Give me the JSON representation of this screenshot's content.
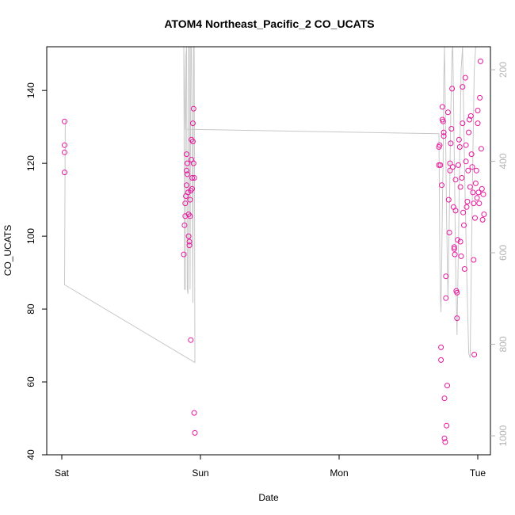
{
  "chart_data": {
    "type": "scatter",
    "title": "ATOM4 Northeast_Pacific_2 CO_UCATS",
    "xlabel": "Date",
    "ylabel": "CO_UCATS",
    "x_ticks": [
      "Sat",
      "Sun",
      "Mon",
      "Tue"
    ],
    "ylim": [
      40,
      152
    ],
    "y_ticks": [
      40,
      60,
      80,
      100,
      120,
      140
    ],
    "y2_ticks": [
      200,
      400,
      600,
      800,
      1000
    ],
    "y2_reversed": true,
    "colors": {
      "points": "#e6199e",
      "altitude_line": "#c8c8c8",
      "axis": "#000000",
      "right_axis": "#b3b3b3"
    },
    "series": [
      {
        "marker": "circle",
        "points": [
          [
            0.02,
            131.5
          ],
          [
            0.02,
            125
          ],
          [
            0.02,
            123
          ],
          [
            0.02,
            117.5
          ],
          [
            0.88,
            95
          ],
          [
            0.885,
            103
          ],
          [
            0.89,
            105.5
          ],
          [
            0.89,
            109
          ],
          [
            0.895,
            111
          ],
          [
            0.9,
            114
          ],
          [
            0.9,
            118
          ],
          [
            0.9,
            122.5
          ],
          [
            0.905,
            117
          ],
          [
            0.905,
            120
          ],
          [
            0.91,
            112
          ],
          [
            0.915,
            106
          ],
          [
            0.915,
            100
          ],
          [
            0.92,
            98.5
          ],
          [
            0.92,
            97.5
          ],
          [
            0.925,
            105.5
          ],
          [
            0.925,
            110
          ],
          [
            0.93,
            112.5
          ],
          [
            0.93,
            71.5
          ],
          [
            0.935,
            126.5
          ],
          [
            0.935,
            121
          ],
          [
            0.94,
            116
          ],
          [
            0.94,
            113
          ],
          [
            0.945,
            126
          ],
          [
            0.945,
            131
          ],
          [
            0.95,
            135
          ],
          [
            0.95,
            120
          ],
          [
            0.955,
            116
          ],
          [
            0.955,
            51.5
          ],
          [
            0.96,
            46
          ],
          [
            2.72,
            119.5
          ],
          [
            2.72,
            124.5
          ],
          [
            2.725,
            125
          ],
          [
            2.73,
            119.5
          ],
          [
            2.735,
            69.5
          ],
          [
            2.735,
            66
          ],
          [
            2.74,
            114
          ],
          [
            2.745,
            132
          ],
          [
            2.745,
            135.5
          ],
          [
            2.75,
            131.5
          ],
          [
            2.755,
            128.5
          ],
          [
            2.755,
            127.5
          ],
          [
            2.76,
            55.5
          ],
          [
            2.76,
            44.5
          ],
          [
            2.765,
            43.5
          ],
          [
            2.77,
            89
          ],
          [
            2.77,
            83
          ],
          [
            2.775,
            48
          ],
          [
            2.78,
            59
          ],
          [
            2.785,
            134
          ],
          [
            2.79,
            110
          ],
          [
            2.795,
            101
          ],
          [
            2.8,
            118
          ],
          [
            2.8,
            120
          ],
          [
            2.805,
            125.5
          ],
          [
            2.81,
            129.5
          ],
          [
            2.815,
            140.5
          ],
          [
            2.82,
            119
          ],
          [
            2.825,
            108
          ],
          [
            2.83,
            97
          ],
          [
            2.83,
            96.5
          ],
          [
            2.835,
            95
          ],
          [
            2.84,
            107
          ],
          [
            2.84,
            115.5
          ],
          [
            2.845,
            85
          ],
          [
            2.85,
            84.5
          ],
          [
            2.85,
            77.5
          ],
          [
            2.855,
            99
          ],
          [
            2.86,
            119.5
          ],
          [
            2.865,
            126.5
          ],
          [
            2.87,
            124.5
          ],
          [
            2.875,
            113.5
          ],
          [
            2.875,
            98.5
          ],
          [
            2.88,
            94.5
          ],
          [
            2.885,
            116
          ],
          [
            2.89,
            141
          ],
          [
            2.89,
            131
          ],
          [
            2.895,
            106.5
          ],
          [
            2.9,
            103
          ],
          [
            2.905,
            91
          ],
          [
            2.91,
            143.5
          ],
          [
            2.915,
            125
          ],
          [
            2.915,
            120.5
          ],
          [
            2.92,
            108
          ],
          [
            2.925,
            109.5
          ],
          [
            2.93,
            118
          ],
          [
            2.935,
            128.5
          ],
          [
            2.94,
            132
          ],
          [
            2.945,
            113.5
          ],
          [
            2.95,
            133
          ],
          [
            2.955,
            122.5
          ],
          [
            2.96,
            119
          ],
          [
            2.965,
            112
          ],
          [
            2.97,
            109
          ],
          [
            2.97,
            93.5
          ],
          [
            2.975,
            67.5
          ],
          [
            2.98,
            105
          ],
          [
            2.985,
            114.5
          ],
          [
            2.99,
            118
          ],
          [
            2.995,
            110.5
          ],
          [
            3.0,
            134.5
          ],
          [
            3.0,
            131
          ],
          [
            3.005,
            112
          ],
          [
            3.01,
            109
          ],
          [
            3.015,
            138
          ],
          [
            3.02,
            148
          ],
          [
            3.025,
            124
          ],
          [
            3.03,
            113
          ],
          [
            3.035,
            104.5
          ],
          [
            3.04,
            111.5
          ],
          [
            3.045,
            106
          ]
        ]
      },
      {
        "name": "",
        "axis": "right",
        "line": true,
        "note_units": "pressure (reversed right axis)",
        "points": [
          [
            0.025,
            310
          ],
          [
            0.02,
            670
          ],
          [
            0.96,
            840
          ],
          [
            0.955,
            110
          ],
          [
            0.95,
            100
          ],
          [
            0.945,
            710
          ],
          [
            0.94,
            340
          ],
          [
            0.935,
            130
          ],
          [
            0.93,
            100
          ],
          [
            0.925,
            680
          ],
          [
            0.92,
            140
          ],
          [
            0.915,
            100
          ],
          [
            0.91,
            690
          ],
          [
            0.905,
            680
          ],
          [
            0.9,
            100
          ],
          [
            0.895,
            170
          ],
          [
            0.89,
            680
          ],
          [
            0.885,
            680
          ],
          [
            0.88,
            100
          ],
          [
            0.89,
            330
          ],
          [
            2.72,
            340
          ],
          [
            2.725,
            560
          ],
          [
            2.73,
            700
          ],
          [
            2.735,
            730
          ],
          [
            2.74,
            620
          ],
          [
            2.745,
            490
          ],
          [
            2.75,
            400
          ],
          [
            2.755,
            220
          ],
          [
            2.76,
            100
          ],
          [
            2.765,
            260
          ],
          [
            2.775,
            520
          ],
          [
            2.785,
            700
          ],
          [
            2.795,
            520
          ],
          [
            2.805,
            300
          ],
          [
            2.815,
            160
          ],
          [
            2.82,
            100
          ],
          [
            2.83,
            380
          ],
          [
            2.84,
            620
          ],
          [
            2.85,
            780
          ],
          [
            2.86,
            600
          ],
          [
            2.87,
            380
          ],
          [
            2.88,
            200
          ],
          [
            2.89,
            100
          ],
          [
            2.905,
            420
          ],
          [
            2.92,
            640
          ],
          [
            2.935,
            820
          ],
          [
            2.945,
            830
          ],
          [
            2.955,
            600
          ],
          [
            2.965,
            380
          ],
          [
            2.975,
            200
          ],
          [
            2.985,
            100
          ],
          [
            3.0,
            150
          ],
          [
            3.02,
            100
          ]
        ]
      }
    ]
  }
}
